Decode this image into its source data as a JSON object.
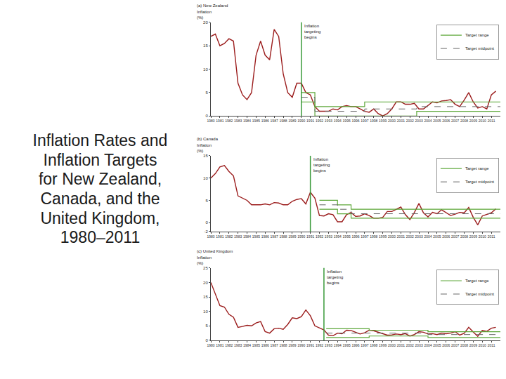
{
  "heading": "Inflation Rates and Inflation Targets for New Zealand, Canada, and the United Kingdom, 1980–2011",
  "chart_data": [
    {
      "type": "line",
      "title": "(a) New Zealand",
      "ylabel": "Inflation (%)",
      "grid": false,
      "legend": "upper right",
      "x": [
        1980,
        1980.5,
        1981,
        1981.5,
        1982,
        1982.5,
        1983,
        1983.5,
        1984,
        1984.5,
        1985,
        1985.5,
        1986,
        1986.5,
        1987,
        1987.5,
        1988,
        1988.5,
        1989,
        1989.5,
        1990,
        1990.5,
        1991,
        1991.5,
        1992,
        1992.5,
        1993,
        1993.5,
        1994,
        1994.5,
        1995,
        1995.5,
        1996,
        1996.5,
        1997,
        1997.5,
        1998,
        1998.5,
        1999,
        1999.5,
        2000,
        2000.5,
        2001,
        2001.5,
        2002,
        2002.5,
        2003,
        2003.5,
        2004,
        2004.5,
        2005,
        2005.5,
        2006,
        2006.5,
        2007,
        2007.5,
        2008,
        2008.5,
        2009,
        2009.5,
        2010,
        2010.5,
        2011,
        2011.5
      ],
      "series": [
        {
          "color": "#9b1c1c",
          "values": [
            17,
            17.5,
            15,
            15.5,
            16.5,
            16,
            7,
            4.5,
            3.5,
            5,
            13,
            16,
            13,
            12,
            18.5,
            17,
            9,
            5,
            4,
            7,
            7,
            5,
            4.5,
            2,
            1,
            1,
            1,
            1.5,
            1.3,
            2,
            2.2,
            2,
            2,
            1.5,
            1,
            0.8,
            1.5,
            0.5,
            0,
            0.5,
            1.5,
            3,
            3,
            2.5,
            2.5,
            2.7,
            1.5,
            1.5,
            2.3,
            3,
            2.8,
            3.2,
            3.3,
            3.5,
            2.5,
            2,
            3.4,
            5,
            3,
            1.7,
            2,
            1.5,
            4.5,
            5.3
          ]
        }
      ],
      "target_range": {
        "name": "Target range",
        "color": "#5ea83a",
        "x": [
          1990,
          1991.5,
          1997,
          2002.75,
          2012
        ],
        "upper": [
          5,
          2,
          3,
          3,
          3
        ],
        "lower": [
          3,
          0,
          0,
          1,
          1
        ]
      },
      "target_midpoint": {
        "name": "Target midpoint",
        "color": "#666666",
        "line_style": "dashed",
        "x": [
          1990,
          1991.5,
          1997,
          2002.75,
          2012
        ],
        "values": [
          4,
          1,
          1.5,
          2,
          2
        ]
      },
      "annotations": [
        {
          "text": "Inflation targeting begins",
          "x": 1990,
          "color": "#3a9a3a"
        }
      ],
      "xlim": [
        1980,
        2012
      ],
      "xticks": [
        1980,
        1981,
        1982,
        1983,
        1984,
        1985,
        1986,
        1987,
        1988,
        1989,
        1990,
        1991,
        1992,
        1993,
        1994,
        1995,
        1996,
        1997,
        1998,
        1999,
        2000,
        2001,
        2002,
        2003,
        2004,
        2005,
        2006,
        2007,
        2008,
        2009,
        2010,
        2011
      ],
      "ylim": [
        0,
        20
      ],
      "yticks": [
        0,
        5,
        10,
        15,
        20
      ]
    },
    {
      "type": "line",
      "title": "(b) Canada",
      "ylabel": "Inflation (%)",
      "grid": false,
      "legend": "upper right",
      "x": [
        1980,
        1980.5,
        1981,
        1981.5,
        1982,
        1982.5,
        1983,
        1983.5,
        1984,
        1984.5,
        1985,
        1985.5,
        1986,
        1986.5,
        1987,
        1987.5,
        1988,
        1988.5,
        1989,
        1989.5,
        1990,
        1990.5,
        1991,
        1991.5,
        1992,
        1992.5,
        1993,
        1993.5,
        1994,
        1994.5,
        1995,
        1995.5,
        1996,
        1996.5,
        1997,
        1997.5,
        1998,
        1998.5,
        1999,
        1999.5,
        2000,
        2000.5,
        2001,
        2001.5,
        2002,
        2002.5,
        2003,
        2003.5,
        2004,
        2004.5,
        2005,
        2005.5,
        2006,
        2006.5,
        2007,
        2007.5,
        2008,
        2008.5,
        2009,
        2009.5,
        2010,
        2010.5,
        2011,
        2011.5
      ],
      "series": [
        {
          "color": "#9b1c1c",
          "values": [
            10,
            11,
            12.5,
            12.8,
            11.5,
            10.5,
            6,
            5.5,
            5,
            4,
            4,
            4,
            4.2,
            4,
            4.5,
            4.4,
            4,
            4,
            4.8,
            5.2,
            5.4,
            4.2,
            6.8,
            5.5,
            1.6,
            1.5,
            2,
            1.8,
            0.2,
            0.2,
            1.8,
            2.3,
            1.4,
            1.5,
            2,
            1.6,
            1,
            1,
            1.2,
            2.5,
            2.5,
            3,
            3.5,
            1.8,
            0.7,
            2.3,
            4.3,
            2.2,
            1.3,
            2.3,
            2,
            2.9,
            2.2,
            1.6,
            1.9,
            2.3,
            2.2,
            3.4,
            1.2,
            -0.5,
            1.5,
            1.8,
            2.2,
            3.1
          ]
        }
      ],
      "target_range": {
        "name": "Target range",
        "color": "#5ea83a",
        "x": [
          1992,
          1994,
          1995.5,
          2012
        ],
        "upper": [
          5,
          4,
          3,
          3
        ],
        "lower": [
          3,
          2,
          1,
          1
        ]
      },
      "target_midpoint": {
        "name": "Target midpoint",
        "color": "#666666",
        "line_style": "dashed",
        "x": [
          1992,
          1994,
          1995.5,
          2012
        ],
        "values": [
          4,
          3,
          2,
          2
        ]
      },
      "annotations": [
        {
          "text": "Inflation targeting begins",
          "x": 1991,
          "color": "#3a9a3a"
        }
      ],
      "xlim": [
        1980,
        2012
      ],
      "xticks": [
        1980,
        1981,
        1982,
        1983,
        1984,
        1985,
        1986,
        1987,
        1988,
        1989,
        1990,
        1991,
        1992,
        1993,
        1994,
        1995,
        1996,
        1997,
        1998,
        1999,
        2000,
        2001,
        2002,
        2003,
        2004,
        2005,
        2006,
        2007,
        2008,
        2009,
        2010,
        2011
      ],
      "ylim": [
        -2,
        15
      ],
      "yticks": [
        -2,
        0,
        5,
        10,
        15
      ]
    },
    {
      "type": "line",
      "title": "(c) United Kingdom",
      "ylabel": "Inflation (%)",
      "grid": false,
      "legend": "upper right",
      "x": [
        1980,
        1980.5,
        1981,
        1981.5,
        1982,
        1982.5,
        1983,
        1983.5,
        1984,
        1984.5,
        1985,
        1985.5,
        1986,
        1986.5,
        1987,
        1987.5,
        1988,
        1988.5,
        1989,
        1989.5,
        1990,
        1990.5,
        1991,
        1991.5,
        1992,
        1992.5,
        1993,
        1993.5,
        1994,
        1994.5,
        1995,
        1995.5,
        1996,
        1996.5,
        1997,
        1997.5,
        1998,
        1998.5,
        1999,
        1999.5,
        2000,
        2000.5,
        2001,
        2001.5,
        2002,
        2002.5,
        2003,
        2003.5,
        2004,
        2004.5,
        2005,
        2005.5,
        2006,
        2006.5,
        2007,
        2007.5,
        2008,
        2008.5,
        2009,
        2009.5,
        2010,
        2010.5,
        2011,
        2011.5
      ],
      "series": [
        {
          "color": "#9b1c1c",
          "values": [
            20,
            16,
            12,
            11.5,
            9,
            8,
            4.5,
            4.8,
            5.2,
            5,
            6,
            6.5,
            3,
            2.5,
            4,
            4.2,
            3.8,
            5.5,
            7.8,
            7.5,
            8.2,
            10.5,
            8.5,
            5,
            4.2,
            3.6,
            1.8,
            1.6,
            2.5,
            2.3,
            3.5,
            3.4,
            2.8,
            2.2,
            2.6,
            3.5,
            3.3,
            2.8,
            2.2,
            1.8,
            1.9,
            2.2,
            2,
            2.3,
            1.5,
            2,
            3,
            2.8,
            2.2,
            2.3,
            2,
            2.5,
            2.3,
            2.5,
            3,
            1.8,
            2.4,
            4.5,
            2.9,
            1.4,
            3.4,
            3.1,
            4.2,
            4.5
          ]
        }
      ],
      "target_range": {
        "name": "Target range",
        "color": "#5ea83a",
        "x": [
          1992.75,
          1997.5,
          2004,
          2012
        ],
        "upper": [
          4,
          3.5,
          3,
          3
        ],
        "lower": [
          1,
          1.5,
          1,
          1
        ]
      },
      "target_midpoint": {
        "name": "Target midpoint",
        "color": "#666666",
        "line_style": "dashed",
        "x": [
          1992.75,
          1997.5,
          2004,
          2012
        ],
        "values": [
          2.5,
          2.5,
          2,
          2
        ]
      },
      "annotations": [
        {
          "text": "Inflation targeting begins",
          "x": 1992.5,
          "color": "#3a9a3a"
        }
      ],
      "xlim": [
        1980,
        2012
      ],
      "xticks": [
        1980,
        1981,
        1982,
        1983,
        1984,
        1985,
        1986,
        1987,
        1988,
        1989,
        1990,
        1991,
        1992,
        1993,
        1994,
        1995,
        1996,
        1997,
        1998,
        1999,
        2000,
        2001,
        2002,
        2003,
        2004,
        2005,
        2006,
        2007,
        2008,
        2009,
        2010,
        2011
      ],
      "ylim": [
        0,
        25
      ],
      "yticks": [
        0,
        5,
        10,
        15,
        20,
        25
      ]
    }
  ]
}
